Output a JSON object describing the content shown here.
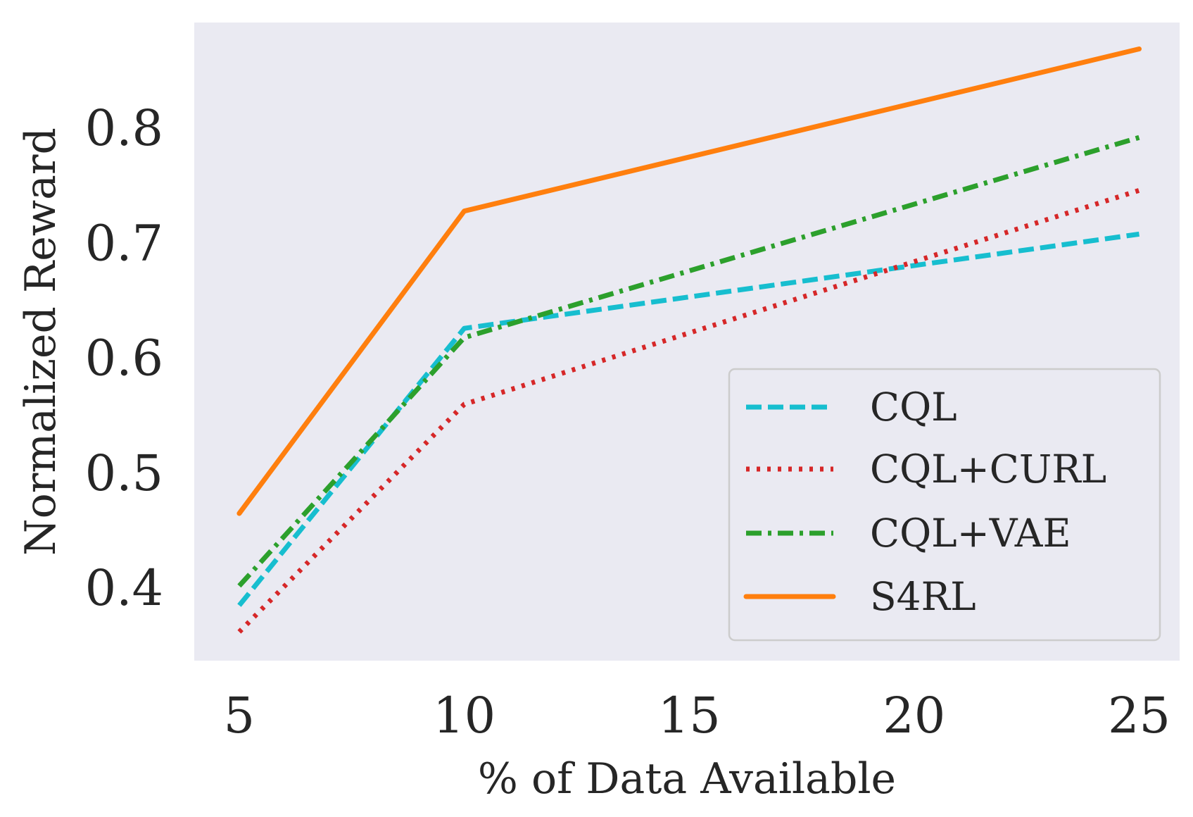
{
  "chart_data": {
    "type": "line",
    "title": "",
    "xlabel": "% of Data Available",
    "ylabel": "Normalized Reward",
    "x": [
      5,
      10,
      25
    ],
    "xlim": [
      4.0,
      25.9
    ],
    "ylim": [
      0.337,
      0.892
    ],
    "xticks": [
      5,
      10,
      15,
      20,
      25
    ],
    "xtick_labels": [
      "5",
      "10",
      "15",
      "20",
      "25"
    ],
    "yticks": [
      0.4,
      0.5,
      0.6,
      0.7,
      0.8
    ],
    "ytick_labels": [
      "0.4",
      "0.5",
      "0.6",
      "0.7",
      "0.8"
    ],
    "grid": false,
    "legend_position": "lower-right",
    "series": [
      {
        "name": "CQL",
        "values": [
          0.385,
          0.626,
          0.708
        ],
        "color": "#17becf",
        "style": "dashed"
      },
      {
        "name": "CQL+CURL",
        "values": [
          0.362,
          0.56,
          0.746
        ],
        "color": "#d62728",
        "style": "dotted"
      },
      {
        "name": "CQL+VAE",
        "values": [
          0.402,
          0.618,
          0.792
        ],
        "color": "#2ca02c",
        "style": "dashdot"
      },
      {
        "name": "S4RL",
        "values": [
          0.465,
          0.728,
          0.869
        ],
        "color": "#ff7f0e",
        "style": "solid"
      }
    ]
  }
}
